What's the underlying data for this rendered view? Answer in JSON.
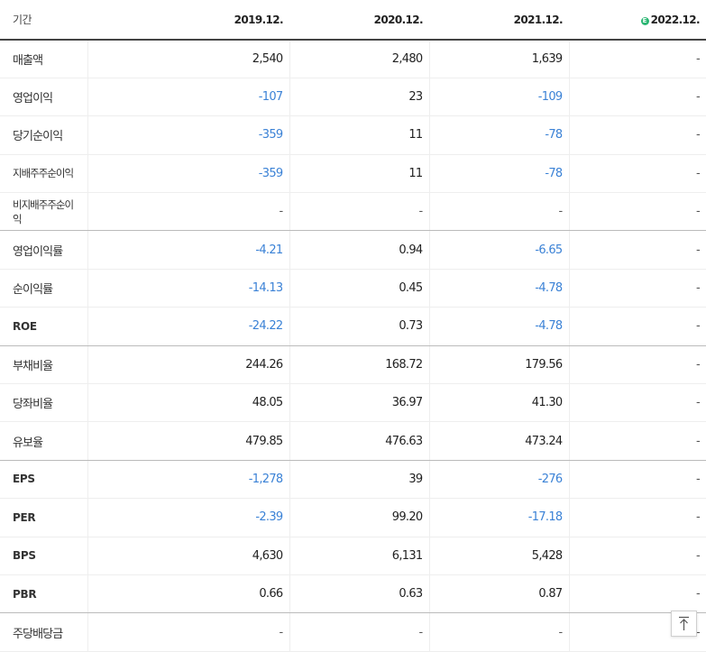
{
  "header": {
    "label": "기간",
    "years": [
      "2019.12.",
      "2020.12.",
      "2021.12.",
      "2022.12."
    ],
    "estimate_marker": "E",
    "estimate_icon": "estimate-circle-icon"
  },
  "rows": [
    {
      "key": "revenue",
      "label": "매출액",
      "values": [
        "2,540",
        "2,480",
        "1,639",
        "-"
      ]
    },
    {
      "key": "operating-income",
      "label": "영업이익",
      "values": [
        "-107",
        "23",
        "-109",
        "-"
      ]
    },
    {
      "key": "net-income",
      "label": "당기순이익",
      "values": [
        "-359",
        "11",
        "-78",
        "-"
      ]
    },
    {
      "key": "controlling-net-income",
      "label": "지배주주순이익",
      "values": [
        "-359",
        "11",
        "-78",
        "-"
      ]
    },
    {
      "key": "noncontrolling-net-income",
      "label": "비지배주주순이익",
      "values": [
        "-",
        "-",
        "-",
        "-"
      ]
    },
    {
      "key": "operating-margin",
      "label": "영업이익률",
      "values": [
        "-4.21",
        "0.94",
        "-6.65",
        "-"
      ]
    },
    {
      "key": "net-margin",
      "label": "순이익률",
      "values": [
        "-14.13",
        "0.45",
        "-4.78",
        "-"
      ]
    },
    {
      "key": "roe",
      "label": "ROE",
      "values": [
        "-24.22",
        "0.73",
        "-4.78",
        "-"
      ]
    },
    {
      "key": "debt-ratio",
      "label": "부채비율",
      "values": [
        "244.26",
        "168.72",
        "179.56",
        "-"
      ]
    },
    {
      "key": "quick-ratio",
      "label": "당좌비율",
      "values": [
        "48.05",
        "36.97",
        "41.30",
        "-"
      ]
    },
    {
      "key": "reserve-ratio",
      "label": "유보율",
      "values": [
        "479.85",
        "476.63",
        "473.24",
        "-"
      ]
    },
    {
      "key": "eps",
      "label": "EPS",
      "values": [
        "-1,278",
        "39",
        "-276",
        "-"
      ]
    },
    {
      "key": "per",
      "label": "PER",
      "values": [
        "-2.39",
        "99.20",
        "-17.18",
        "-"
      ]
    },
    {
      "key": "bps",
      "label": "BPS",
      "values": [
        "4,630",
        "6,131",
        "5,428",
        "-"
      ]
    },
    {
      "key": "pbr",
      "label": "PBR",
      "values": [
        "0.66",
        "0.63",
        "0.87",
        "-"
      ]
    },
    {
      "key": "dps",
      "label": "주당배당금",
      "values": [
        "-",
        "-",
        "-",
        "-"
      ]
    }
  ],
  "colors": {
    "negative": "#3b82d6",
    "text": "#222222",
    "estimate_badge": "#2bb673",
    "header_rule": "#444444"
  },
  "scroll_top": {
    "icon": "arrow-up-to-top-icon"
  }
}
